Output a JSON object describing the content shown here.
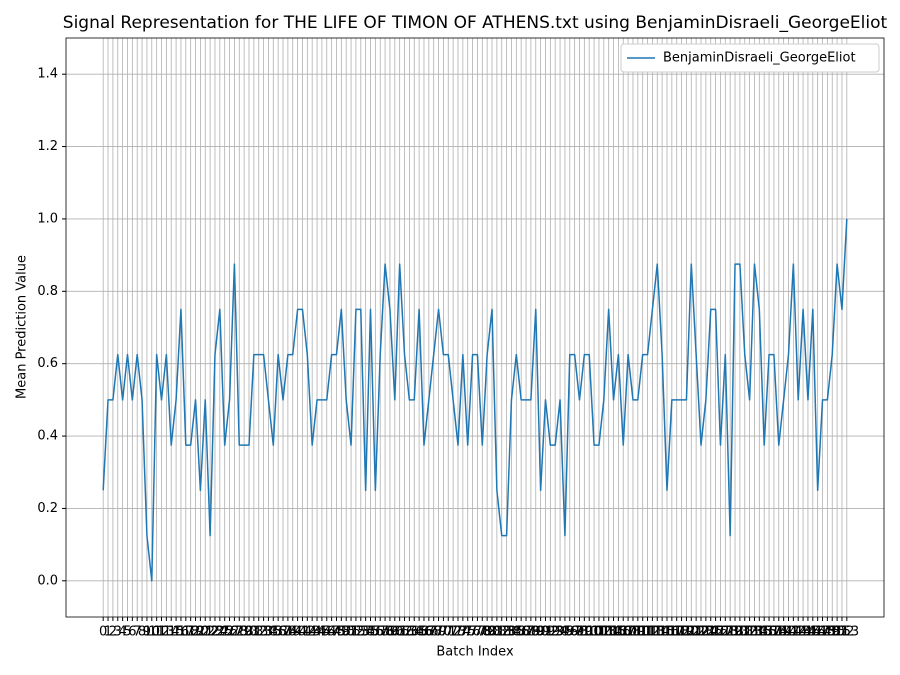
{
  "chart_data": {
    "type": "line",
    "title": "Signal Representation for THE LIFE OF TIMON OF ATHENS.txt using BenjaminDisraeli_GeorgeEliot",
    "xlabel": "Batch Index",
    "ylabel": "Mean Prediction Value",
    "x": [
      0,
      1,
      2,
      3,
      4,
      5,
      6,
      7,
      8,
      9,
      10,
      11,
      12,
      13,
      14,
      15,
      16,
      17,
      18,
      19,
      20,
      21,
      22,
      23,
      24,
      25,
      26,
      27,
      28,
      29,
      30,
      31,
      32,
      33,
      34,
      35,
      36,
      37,
      38,
      39,
      40,
      41,
      42,
      43,
      44,
      45,
      46,
      47,
      48,
      49,
      50,
      51,
      52,
      53,
      54,
      55,
      56,
      57,
      58,
      59,
      60,
      61,
      62,
      63,
      64,
      65,
      66,
      67,
      68,
      69,
      70,
      71,
      72,
      73,
      74,
      75,
      76,
      77,
      78,
      79,
      80,
      81,
      82,
      83,
      84,
      85,
      86,
      87,
      88,
      89,
      90,
      91,
      92,
      93,
      94,
      95,
      96,
      97,
      98,
      99,
      100,
      101,
      102,
      103,
      104,
      105,
      106,
      107,
      108,
      109,
      110,
      111,
      112,
      113,
      114,
      115,
      116,
      117,
      118,
      119,
      120,
      121,
      122,
      123,
      124,
      125,
      126,
      127,
      128,
      129,
      130,
      131,
      132,
      133,
      134,
      135,
      136,
      137,
      138,
      139,
      140,
      141,
      142,
      143,
      144,
      145,
      146,
      147,
      148,
      149,
      150,
      151,
      152,
      153
    ],
    "series": [
      {
        "name": "BenjaminDisraeli_GeorgeEliot",
        "color": "#1f77b4",
        "values": [
          0.25,
          0.5,
          0.5,
          0.625,
          0.5,
          0.625,
          0.5,
          0.625,
          0.5,
          0.125,
          0.0,
          0.625,
          0.5,
          0.625,
          0.375,
          0.5,
          0.75,
          0.375,
          0.375,
          0.5,
          0.25,
          0.5,
          0.125,
          0.625,
          0.75,
          0.375,
          0.5,
          0.875,
          0.375,
          0.375,
          0.375,
          0.625,
          0.625,
          0.625,
          0.5,
          0.375,
          0.625,
          0.5,
          0.625,
          0.625,
          0.75,
          0.75,
          0.625,
          0.375,
          0.5,
          0.5,
          0.5,
          0.625,
          0.625,
          0.75,
          0.5,
          0.375,
          0.75,
          0.75,
          0.25,
          0.75,
          0.25,
          0.625,
          0.875,
          0.75,
          0.5,
          0.875,
          0.625,
          0.5,
          0.5,
          0.75,
          0.375,
          0.5,
          0.625,
          0.75,
          0.625,
          0.625,
          0.5,
          0.375,
          0.625,
          0.375,
          0.625,
          0.625,
          0.375,
          0.625,
          0.75,
          0.25,
          0.125,
          0.125,
          0.5,
          0.625,
          0.5,
          0.5,
          0.5,
          0.75,
          0.25,
          0.5,
          0.375,
          0.375,
          0.5,
          0.125,
          0.625,
          0.625,
          0.5,
          0.625,
          0.625,
          0.375,
          0.375,
          0.5,
          0.75,
          0.5,
          0.625,
          0.375,
          0.625,
          0.5,
          0.5,
          0.625,
          0.625,
          0.75,
          0.875,
          0.625,
          0.25,
          0.5,
          0.5,
          0.5,
          0.5,
          0.875,
          0.625,
          0.375,
          0.5,
          0.75,
          0.75,
          0.375,
          0.625,
          0.125,
          0.875,
          0.875,
          0.625,
          0.5,
          0.875,
          0.75,
          0.375,
          0.625,
          0.625,
          0.375,
          0.5,
          0.625,
          0.875,
          0.5,
          0.75,
          0.5,
          0.75,
          0.25,
          0.5,
          0.5,
          0.625,
          0.875,
          0.75,
          1.0
        ]
      }
    ],
    "xlim": [
      -7.65,
      160.65
    ],
    "ylim": [
      -0.1,
      1.5
    ],
    "yticks": [
      {
        "value": 0,
        "label": "0.0"
      },
      0.2,
      0.4,
      0.6,
      0.8,
      {
        "value": 1,
        "label": "1.0"
      },
      1.2,
      1.4
    ],
    "grid": true,
    "legend": "upper right"
  }
}
